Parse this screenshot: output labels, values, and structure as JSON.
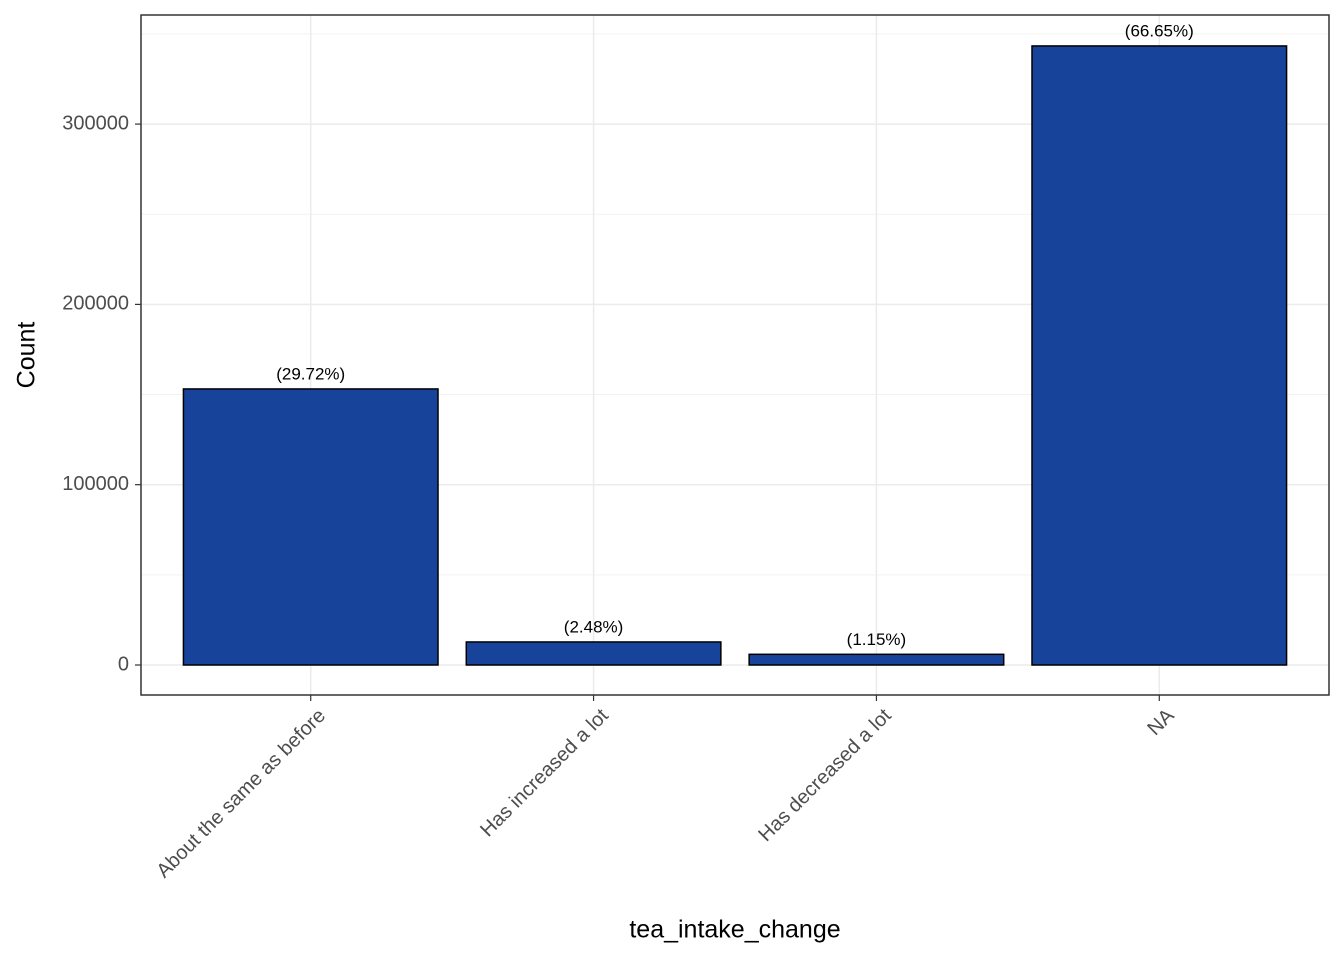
{
  "chart_data": {
    "type": "bar",
    "x_label": "tea_intake_change",
    "y_label": "Count",
    "categories": [
      "About the same as before",
      "Has increased a lot",
      "Has decreased a lot",
      "NA"
    ],
    "values": [
      153100,
      12775,
      5924,
      343340
    ],
    "bar_labels": [
      "(29.72%)",
      "(2.48%)",
      "(1.15%)",
      "(66.65%)"
    ],
    "color": "#17449a",
    "ylim": [
      -16640,
      360500
    ],
    "yticks": [
      0,
      100000,
      200000,
      300000
    ],
    "grid": true
  }
}
